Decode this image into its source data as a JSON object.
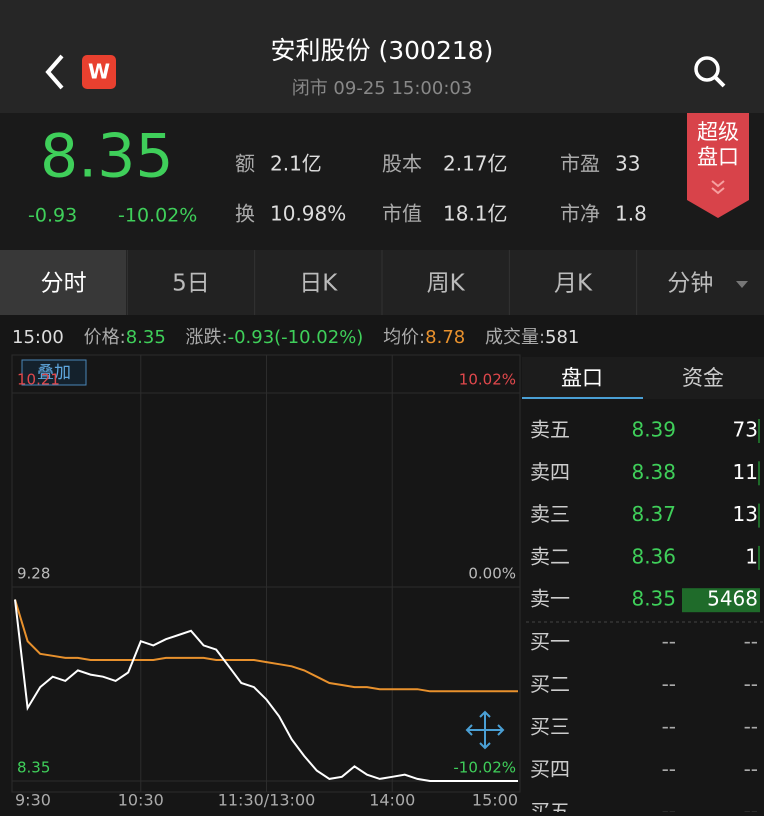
{
  "header": {
    "title": "安利股份 (300218)",
    "status": "闭市 09-25 15:00:03",
    "logo": "W"
  },
  "quote": {
    "price": "8.35",
    "change": "-0.93",
    "change_pct": "-10.02%",
    "stats": [
      [
        {
          "label": "额",
          "value": "2.1亿"
        },
        {
          "label": "股本",
          "value": "2.17亿"
        },
        {
          "label": "市盈",
          "value": "33"
        }
      ],
      [
        {
          "label": "换",
          "value": "10.98%"
        },
        {
          "label": "市值",
          "value": "18.1亿"
        },
        {
          "label": "市净",
          "value": "1.8"
        }
      ]
    ],
    "badge": [
      "超级",
      "盘口"
    ]
  },
  "tabs": [
    "分时",
    "5日",
    "日K",
    "周K",
    "月K",
    "分钟"
  ],
  "info": {
    "time": "15:00",
    "price_label": "价格:",
    "price": "8.35",
    "change_label": "涨跌:",
    "change": "-0.93(-10.02%)",
    "avg_label": "均价:",
    "avg": "8.78",
    "volume_label": "成交量:",
    "volume": "581"
  },
  "overlay_button": "叠加",
  "chart": {
    "type": "line",
    "x": [
      0,
      6,
      12,
      18,
      24,
      30,
      36,
      42,
      48,
      54,
      60,
      66,
      72,
      78,
      84,
      90,
      96,
      102,
      108,
      114,
      120,
      126,
      132,
      138,
      144,
      150,
      156,
      162,
      168,
      174,
      180,
      186,
      192,
      198,
      204,
      210,
      216,
      222,
      228,
      234,
      240
    ],
    "series": [
      {
        "color": "#ffffff",
        "values": [
          9.22,
          8.7,
          8.8,
          8.85,
          8.83,
          8.88,
          8.86,
          8.85,
          8.83,
          8.87,
          9.02,
          9.0,
          9.03,
          9.05,
          9.07,
          9.0,
          8.98,
          8.9,
          8.82,
          8.8,
          8.74,
          8.66,
          8.55,
          8.47,
          8.4,
          8.36,
          8.37,
          8.42,
          8.38,
          8.36,
          8.37,
          8.38,
          8.36,
          8.35,
          8.35,
          8.35,
          8.35,
          8.35,
          8.35,
          8.35,
          8.35
        ]
      },
      {
        "color": "#e8912d",
        "values": [
          9.22,
          9.02,
          8.96,
          8.95,
          8.94,
          8.94,
          8.93,
          8.93,
          8.93,
          8.93,
          8.93,
          8.93,
          8.94,
          8.94,
          8.94,
          8.94,
          8.93,
          8.93,
          8.93,
          8.93,
          8.92,
          8.91,
          8.9,
          8.88,
          8.85,
          8.82,
          8.81,
          8.8,
          8.8,
          8.79,
          8.79,
          8.79,
          8.79,
          8.78,
          8.78,
          8.78,
          8.78,
          8.78,
          8.78,
          8.78,
          8.78
        ]
      }
    ],
    "xlim": [
      0,
      240
    ],
    "ylim": [
      8.35,
      10.21
    ],
    "xticks": [
      {
        "value": 0,
        "label": "9:30"
      },
      {
        "value": 60,
        "label": "10:30"
      },
      {
        "value": 120,
        "label": "11:30/13:00"
      },
      {
        "value": 180,
        "label": "14:00"
      },
      {
        "value": 240,
        "label": "15:00"
      }
    ],
    "yticks": [
      10.21,
      9.28,
      8.35
    ],
    "y2ticks": [
      {
        "value": 10.21,
        "label": "10.02%"
      },
      {
        "value": 9.28,
        "label": "0.00%"
      },
      {
        "value": 8.35,
        "label": "-10.02%"
      }
    ],
    "grid": true
  },
  "order_book": {
    "tabs": [
      "盘口",
      "资金"
    ],
    "asks": [
      {
        "label": "卖五",
        "price": 8.39,
        "volume": 73
      },
      {
        "label": "卖四",
        "price": 8.38,
        "volume": 11
      },
      {
        "label": "卖三",
        "price": 8.37,
        "volume": 13
      },
      {
        "label": "卖二",
        "price": 8.36,
        "volume": 1
      },
      {
        "label": "卖一",
        "price": 8.35,
        "volume": 5468
      }
    ],
    "bids": [
      {
        "label": "买一",
        "price": "--",
        "volume": "--"
      },
      {
        "label": "买二",
        "price": "--",
        "volume": "--"
      },
      {
        "label": "买三",
        "price": "--",
        "volume": "--"
      },
      {
        "label": "买四",
        "price": "--",
        "volume": "--"
      },
      {
        "label": "买五",
        "price": "--",
        "volume": "--"
      }
    ]
  }
}
